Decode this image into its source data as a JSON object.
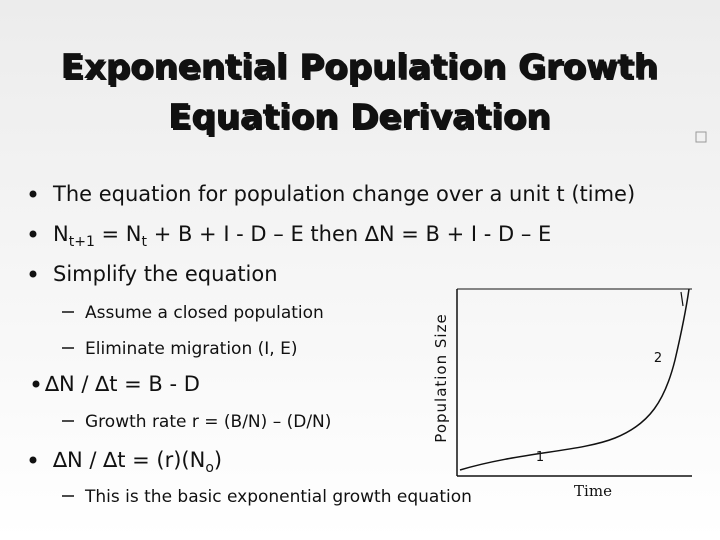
{
  "title": {
    "lines": [
      "Exponential Population Growth",
      "Equation Derivation"
    ]
  },
  "bullets": [
    {
      "segments": [
        "The equation for population change over a unit t (time)"
      ]
    },
    {
      "segments": [
        "N",
        "t+1",
        " = N",
        "t",
        " + B + I - D – E then ∆N = B + I - D – E"
      ]
    },
    {
      "segments": [
        "Simplify the equation"
      ]
    },
    {
      "segments": [
        "Assume a closed population"
      ]
    },
    {
      "segments": [
        "Eliminate migration (I, E)"
      ]
    },
    {
      "segments": [
        "∆N / ∆t = B - D"
      ]
    },
    {
      "segments": [
        "Growth rate r = (B/N) – (D/N)"
      ]
    },
    {
      "segments": [
        "∆N / ∆t = (r)(N",
        "o",
        ")"
      ]
    },
    {
      "segments": [
        "This is the basic exponential growth equation"
      ]
    }
  ],
  "graph": {
    "y_label": "Population Size",
    "x_label": "Time",
    "phase_labels": [
      "1",
      "2"
    ]
  }
}
